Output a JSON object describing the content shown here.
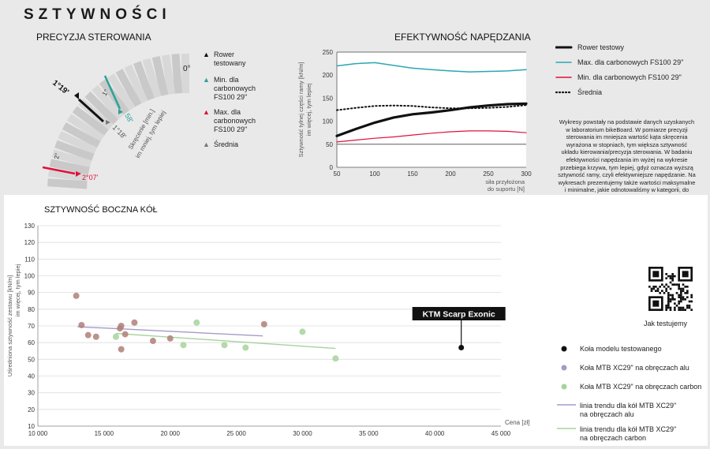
{
  "page_title": "SZTYWNOŚCI",
  "steering": {
    "title": "PRECYZJA STEROWANIA",
    "zero_label": "0°",
    "tested_value": "1°19'",
    "tested_value_small": "1°18'",
    "min_value": "58'",
    "max_value": "2°07'",
    "one_deg": "1°",
    "two_deg": "2°",
    "axis_note": "Skręcenie [min.]\nim mniej, tym lepiej",
    "legend": [
      {
        "marker": "▲",
        "color": "#111111",
        "label": "Rower\ntestowany"
      },
      {
        "marker": "▲",
        "color": "#2aa198",
        "label": "Min. dla\ncarbonowych\nFS100 29\""
      },
      {
        "marker": "▲",
        "color": "#e0103a",
        "label": "Max. dla\ncarbonowych\nFS100 29\""
      },
      {
        "marker": "▲",
        "color": "#777777",
        "label": "Średnia"
      }
    ]
  },
  "drive": {
    "title": "EFEKTYWNOŚĆ NAPĘDZANIA",
    "ylabel": "Sztywność tylnej części ramy [kN/m]\nim więcej, tym lepiej",
    "xlabel": "siła przyłożona\ndo suportu [N]",
    "legend": [
      {
        "name": "Rower testowy",
        "color": "#111111",
        "style": "solid-thick"
      },
      {
        "name": "Max. dla carbonowych FS100 29\"",
        "color": "#2aa7b3",
        "style": "solid"
      },
      {
        "name": "Min. dla carbonowych FS100 29\"",
        "color": "#e0103a",
        "style": "solid"
      },
      {
        "name": "Średnia",
        "color": "#111111",
        "style": "dotted"
      }
    ]
  },
  "description": "Wykresy powstały na podstawie danych uzyskanych w laboratorium bikeBoard. W pomiarze precyzji sterowania im mniejsza wartość kąta skręcenia wyrażona w stopniach, tym większa sztywność układu kierowania/precyzja sterowania. W badaniu efektywności napędzania im wyżej na wykresie przebiega krzywa, tym lepiej, gdyż oznacza wyższą sztywność ramy, czyli efektywniejsze napędzanie. Na wykresach prezentujemy także wartości maksymalne i minimalne, jakie odnotowaliśmy w kategorii, do jakiej należy testowany rower, oraz wartości średnie ze wszystkich pomiarów w danej kategorii. Wykres sztywności bocznej kół prezentuje uśrednione wyniki pomiarów przedniego i tylnego koła na tle wszystkich zmierzonych przez nas zestawów kół z rowerów należących do danej kategorii, z uwzględnieniem ich wielkości oraz materiału obręczy. Na wykresie dodaliśmy linie trendu prezentujące, jakiej zmiany parametru sztywności należy oczekiwać wraz ze zmianą ceny roweru. Więcej o tym, jak testujemy, znajdziecie na: www.testy.bikeboard.pl/artykuly,szukaj,jak-testujemy",
  "qr_caption": "Jak testujemy",
  "wheels": {
    "title": "SZTYWNOŚĆ BOCZNA KÓŁ",
    "callout": "KTM Scarp Exonic",
    "legend": [
      {
        "label": "Koła modelu testowanego",
        "color": "#111111",
        "kind": "dot"
      },
      {
        "label": "Koła MTB XC29\" na obręczach alu",
        "color": "#a39cc9",
        "kind": "dot"
      },
      {
        "label": "Koła MTB XC29\" na obręczach carbon",
        "color": "#a5d39b",
        "kind": "dot"
      },
      {
        "label": "linia trendu dla kół MTB XC29\"\nna obręczach alu",
        "color": "#a39cc9",
        "kind": "line"
      },
      {
        "label": "linia trendu dla kół MTB XC29\"\nna obręczach carbon",
        "color": "#a5d39b",
        "kind": "line"
      }
    ]
  },
  "chart_data": [
    {
      "type": "line",
      "title": "EFEKTYWNOŚĆ NAPĘDZANIA",
      "xlabel": "siła przyłożona do suportu [N]",
      "ylabel": "Sztywność tylnej części ramy [kN/m] im więcej, tym lepiej",
      "xlim": [
        50,
        300
      ],
      "ylim": [
        0,
        250
      ],
      "xticks": [
        50,
        100,
        150,
        200,
        250,
        300
      ],
      "yticks": [
        0,
        50,
        100,
        150,
        200,
        250
      ],
      "series": [
        {
          "name": "Rower testowy",
          "x": [
            50,
            75,
            100,
            125,
            150,
            175,
            200,
            225,
            250,
            275,
            300
          ],
          "y": [
            68,
            83,
            97,
            108,
            115,
            119,
            124,
            130,
            134,
            137,
            138
          ]
        },
        {
          "name": "Max. dla carbonowych FS100 29\"",
          "x": [
            50,
            75,
            100,
            125,
            150,
            175,
            200,
            225,
            250,
            275,
            300
          ],
          "y": [
            220,
            225,
            227,
            221,
            215,
            212,
            209,
            207,
            208,
            209,
            212
          ]
        },
        {
          "name": "Min. dla carbonowych FS100 29\"",
          "x": [
            50,
            75,
            100,
            125,
            150,
            175,
            200,
            225,
            250,
            275,
            300
          ],
          "y": [
            55,
            59,
            63,
            66,
            70,
            74,
            77,
            79,
            79,
            78,
            75
          ]
        },
        {
          "name": "Średnia",
          "x": [
            50,
            75,
            100,
            125,
            150,
            175,
            200,
            225,
            250,
            275,
            300
          ],
          "y": [
            124,
            129,
            133,
            134,
            133,
            130,
            128,
            128,
            129,
            131,
            135
          ]
        }
      ],
      "reference_lines": [
        250,
        50
      ]
    },
    {
      "type": "scatter",
      "title": "SZTYWNOŚĆ BOCZNA KÓŁ",
      "xlabel": "Cena [zł]",
      "ylabel": "Uśredniona sztywność zestawu [kN/m] im więcej, tym lepiej",
      "xlim": [
        10000,
        45000
      ],
      "ylim": [
        10,
        130
      ],
      "xticks": [
        10000,
        15000,
        20000,
        25000,
        30000,
        35000,
        40000,
        45000
      ],
      "xticklabels": [
        "10 000",
        "15 000",
        "20 000",
        "25 000",
        "30 000",
        "35 000",
        "40 000",
        "45 000"
      ],
      "yticks": [
        10,
        20,
        30,
        40,
        50,
        60,
        70,
        80,
        90,
        100,
        110,
        120,
        130
      ],
      "grid": true,
      "series": [
        {
          "name": "Koła modelu testowanego",
          "color": "#111111",
          "points": [
            [
              42000,
              57
            ]
          ]
        },
        {
          "name": "Koła MTB XC29\" na obręczach alu",
          "color": "#b07f78",
          "points": [
            [
              12900,
              88
            ],
            [
              13300,
              70.5
            ],
            [
              13800,
              64.5
            ],
            [
              14400,
              63.5
            ],
            [
              16200,
              68.5
            ],
            [
              16300,
              56
            ],
            [
              16300,
              70
            ],
            [
              16600,
              65
            ],
            [
              17300,
              72
            ],
            [
              18700,
              61
            ],
            [
              20000,
              62.5
            ],
            [
              27100,
              71
            ]
          ]
        },
        {
          "name": "Koła MTB XC29\" na obręczach carbon",
          "color": "#a5d39b",
          "points": [
            [
              15900,
              63.5
            ],
            [
              21000,
              58.5
            ],
            [
              22000,
              72
            ],
            [
              24100,
              58.5
            ],
            [
              25700,
              57
            ],
            [
              30000,
              66.5
            ],
            [
              32500,
              50.5
            ]
          ]
        }
      ],
      "trendlines": [
        {
          "name": "linia trendu dla kół MTB XC29\" na obręczach alu",
          "x": [
            13000,
            27000
          ],
          "y": [
            69.5,
            64
          ]
        },
        {
          "name": "linia trendu dla kół MTB XC29\" na obręczach carbon",
          "x": [
            15900,
            32500
          ],
          "y": [
            65.5,
            56.5
          ]
        }
      ],
      "annotations": [
        "KTM Scarp Exonic"
      ]
    }
  ]
}
